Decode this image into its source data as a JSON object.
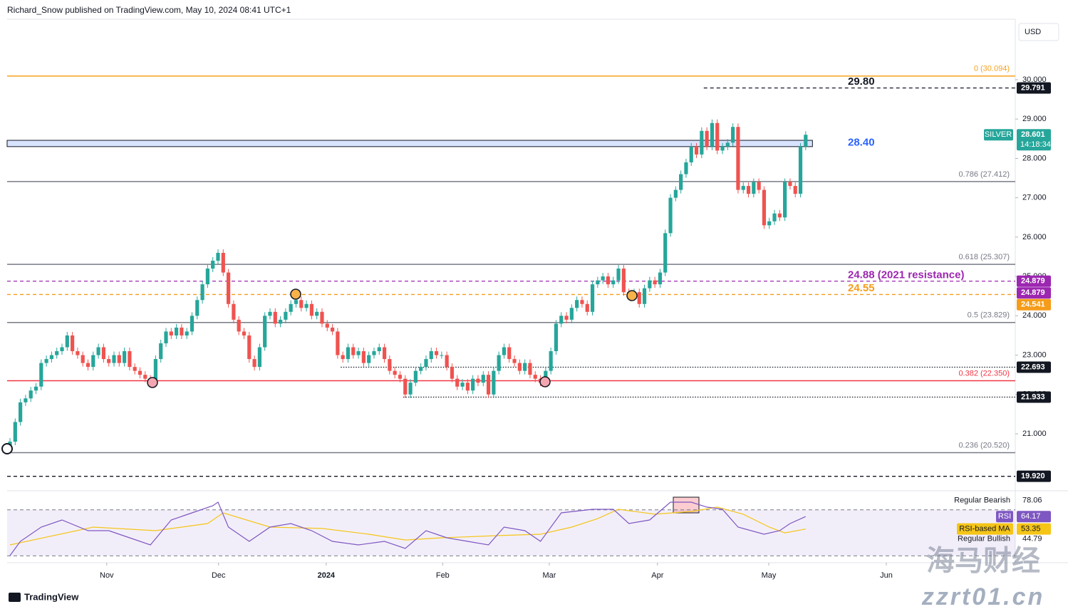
{
  "chart_data": {
    "type": "candlestick",
    "title": "Richard_Snow published on TradingView.com, May 10, 2024 08:41 UTC+1",
    "currency": "USD",
    "footer": "TradingView",
    "watermark": [
      "海马财经",
      "zzrt01.cn"
    ],
    "up_color": "#26a69a",
    "down_color": "#ef5350",
    "xlim": [
      -0.55,
      193.3
    ],
    "xticks": [
      {
        "value": 18.6,
        "label": "Nov"
      },
      {
        "value": 40.1,
        "label": "Dec"
      },
      {
        "value": 60.8,
        "label": "2024",
        "bold": true
      },
      {
        "value": 83.2,
        "label": "Feb"
      },
      {
        "value": 103.7,
        "label": "Mar"
      },
      {
        "value": 124.5,
        "label": "Apr"
      },
      {
        "value": 145.9,
        "label": "May"
      },
      {
        "value": 168.5,
        "label": "Jun"
      }
    ],
    "ylim": [
      19.57,
      31.52
    ],
    "yticks": [
      {
        "value": 21,
        "label": "21.000"
      },
      {
        "value": 22,
        "label": "22.000"
      },
      {
        "value": 23,
        "label": "23.000"
      },
      {
        "value": 24,
        "label": "24.000"
      },
      {
        "value": 25,
        "label": "25.000"
      },
      {
        "value": 26,
        "label": "26.000"
      },
      {
        "value": 27,
        "label": "27.000"
      },
      {
        "value": 28,
        "label": "28.000"
      },
      {
        "value": 29,
        "label": "29.000"
      },
      {
        "value": 30,
        "label": "30.000"
      }
    ],
    "open": [
      20.6,
      20.8,
      21.3,
      21.8,
      21.9,
      22.1,
      22.2,
      22.8,
      22.9,
      23.0,
      23.1,
      23.2,
      23.5,
      23.1,
      23.0,
      22.8,
      22.7,
      23.0,
      23.2,
      22.9,
      22.8,
      23.0,
      22.8,
      23.1,
      22.7,
      22.6,
      22.5,
      22.4,
      22.3,
      22.9,
      23.3,
      23.6,
      23.5,
      23.7,
      23.5,
      23.6,
      24.0,
      24.4,
      24.8,
      25.2,
      25.4,
      25.6,
      25.1,
      24.3,
      23.9,
      23.6,
      23.5,
      22.9,
      22.7,
      23.2,
      24.0,
      24.1,
      23.8,
      23.9,
      24.1,
      24.3,
      24.4,
      24.2,
      24.3,
      24.0,
      24.1,
      23.8,
      23.7,
      23.6,
      23.0,
      22.9,
      23.2,
      23.0,
      23.1,
      22.8,
      23.0,
      23.1,
      23.2,
      22.9,
      22.6,
      22.5,
      22.4,
      22.0,
      22.3,
      22.6,
      22.7,
      22.9,
      23.1,
      23.0,
      23.0,
      22.7,
      22.4,
      22.2,
      22.3,
      22.1,
      22.4,
      22.3,
      22.5,
      22.0,
      22.6,
      23.0,
      23.2,
      22.9,
      22.8,
      22.6,
      22.8,
      22.5,
      22.4,
      22.3,
      22.6,
      23.1,
      23.8,
      24.0,
      23.9,
      24.2,
      24.4,
      24.3,
      24.1,
      24.8,
      24.9,
      25.0,
      24.8,
      24.9,
      25.2,
      24.6,
      24.5,
      24.6,
      24.3,
      24.7,
      24.9,
      24.8,
      25.1,
      26.1,
      27.0,
      27.2,
      27.6,
      27.9,
      28.3,
      28.1,
      28.7,
      28.3,
      28.9,
      28.2,
      28.3,
      28.4,
      28.8,
      27.2,
      27.3,
      27.1,
      27.4,
      27.2,
      26.3,
      26.4,
      26.6,
      26.5,
      27.4,
      27.3,
      27.1,
      28.3
    ],
    "close": [
      20.8,
      21.3,
      21.8,
      21.9,
      22.1,
      22.2,
      22.8,
      22.9,
      23.0,
      23.1,
      23.2,
      23.5,
      23.1,
      23.0,
      22.8,
      22.7,
      23.0,
      23.2,
      22.9,
      22.8,
      23.0,
      22.8,
      23.1,
      22.7,
      22.6,
      22.5,
      22.4,
      22.3,
      22.9,
      23.3,
      23.6,
      23.5,
      23.7,
      23.5,
      23.6,
      24.0,
      24.4,
      24.8,
      25.2,
      25.4,
      25.6,
      25.1,
      24.3,
      23.9,
      23.6,
      23.5,
      22.9,
      22.7,
      23.2,
      24.0,
      24.1,
      23.8,
      23.9,
      24.1,
      24.3,
      24.4,
      24.2,
      24.3,
      24.0,
      24.1,
      23.8,
      23.7,
      23.6,
      23.0,
      22.9,
      23.2,
      23.0,
      23.1,
      22.8,
      23.0,
      23.1,
      23.2,
      22.9,
      22.6,
      22.5,
      22.4,
      22.0,
      22.3,
      22.6,
      22.7,
      22.9,
      23.1,
      23.0,
      23.0,
      22.7,
      22.4,
      22.2,
      22.3,
      22.1,
      22.4,
      22.3,
      22.5,
      22.0,
      22.6,
      23.0,
      23.2,
      22.9,
      22.8,
      22.6,
      22.8,
      22.5,
      22.4,
      22.3,
      22.6,
      23.1,
      23.8,
      24.0,
      23.9,
      24.2,
      24.4,
      24.3,
      24.1,
      24.8,
      24.9,
      25.0,
      24.8,
      24.9,
      25.2,
      24.6,
      24.5,
      24.6,
      24.3,
      24.7,
      24.9,
      24.8,
      25.1,
      26.1,
      27.0,
      27.2,
      27.6,
      27.9,
      28.3,
      28.1,
      28.7,
      28.3,
      28.9,
      28.2,
      28.3,
      28.4,
      28.8,
      27.2,
      27.3,
      27.1,
      27.4,
      27.2,
      26.3,
      26.4,
      26.6,
      26.5,
      27.4,
      27.3,
      27.1,
      28.3,
      28.601
    ],
    "last": {
      "symbol": "SILVER",
      "value": 28.601,
      "countdown": "14:18:34",
      "color": "#26a69a"
    },
    "zone": {
      "range": [
        28.3,
        28.46
      ],
      "x_end": 154.3,
      "color": "#2962ff"
    },
    "levels": [
      {
        "value": 30.094,
        "label": "0 (30.094)",
        "color": "#f7a21b",
        "dash": "solid"
      },
      {
        "value": 29.791,
        "color": "#131722",
        "dash": "dashed",
        "x_start": 133.4
      },
      {
        "value": 27.412,
        "label": "0.786 (27.412)",
        "color": "#787b86",
        "dash": "solid"
      },
      {
        "value": 25.307,
        "label": "0.618 (25.307)",
        "color": "#787b86",
        "dash": "solid"
      },
      {
        "value": 24.879,
        "color": "#9c27b0",
        "dash": "dashed"
      },
      {
        "value": 24.541,
        "color": "#f59c1a",
        "dash": "dashed"
      },
      {
        "value": 23.829,
        "label": "0.5 (23.829)",
        "color": "#787b86",
        "dash": "solid"
      },
      {
        "value": 22.693,
        "color": "#131722",
        "dash": "dotted",
        "x_start": 63.6
      },
      {
        "value": 22.35,
        "label": "0.382 (22.350)",
        "color": "#f23645",
        "dash": "solid"
      },
      {
        "value": 21.933,
        "color": "#131722",
        "dash": "dotted",
        "x_start": 75.6
      },
      {
        "value": 20.52,
        "label": "0.236 (20.520)",
        "color": "#787b86",
        "dash": "solid"
      },
      {
        "value": 19.92,
        "color": "#131722",
        "dash": "dashed"
      }
    ],
    "annotations": [
      {
        "value": 29.8,
        "label": "29.80",
        "color": "#131722"
      },
      {
        "value": 28.4,
        "label": "28.40",
        "color": "#2962ff"
      },
      {
        "value": 24.88,
        "label": "24.88 (2021 resistance)",
        "color": "#9c27b0"
      },
      {
        "value": 24.55,
        "color": "#f59c1a"
      }
    ],
    "price_tags": [
      {
        "value": 29.791,
        "color": "#131722"
      },
      {
        "value": 24.879,
        "color": "#9c27b0"
      },
      {
        "value": 24.879,
        "color": "#9c27b0"
      },
      {
        "value": 24.541,
        "color": "#f59c1a"
      },
      {
        "value": 22.693,
        "color": "#131722"
      },
      {
        "value": 21.933,
        "color": "#131722"
      },
      {
        "value": 19.92,
        "label": "19.920",
        "color": "#131722"
      }
    ],
    "rsi": {
      "label": "RSI",
      "color": "#7e57c2",
      "ylim": [
        24,
        86
      ],
      "levels": [
        70,
        30
      ],
      "x": [
        0,
        2,
        6,
        10,
        15,
        19,
        23,
        27,
        31,
        35,
        39,
        40,
        42,
        46,
        50,
        54,
        58,
        62,
        67,
        72,
        76,
        80,
        84,
        88,
        92,
        95,
        99,
        102,
        106,
        112,
        116,
        119,
        123,
        127,
        131,
        134,
        137,
        140,
        145,
        148,
        150,
        153
      ],
      "values": [
        30.2,
        42.6,
        55,
        61.2,
        51.9,
        51.9,
        45.7,
        39.5,
        61.2,
        67.4,
        73.6,
        76.7,
        55,
        42.6,
        55,
        58.1,
        51.9,
        42.6,
        39.5,
        42.6,
        36.4,
        51.9,
        45.7,
        42.6,
        39.5,
        55,
        51.9,
        42.6,
        67.4,
        70.5,
        70.5,
        58.1,
        61.2,
        76.7,
        76.7,
        72.4,
        70.5,
        55,
        48.8,
        51.9,
        58.1,
        64.17
      ],
      "ma_label": "RSI-based MA",
      "ma_color": "#f5c518",
      "ma_x": [
        0,
        16,
        28,
        38,
        41,
        50,
        60,
        69,
        76,
        83,
        94,
        102,
        108,
        113,
        117,
        124,
        131,
        136,
        141,
        146,
        149,
        153
      ],
      "ma": [
        39.5,
        55,
        51.9,
        58.1,
        67.4,
        55,
        53.8,
        48.8,
        43.8,
        45.7,
        47.6,
        48.8,
        55,
        62.4,
        70.5,
        66.2,
        68.6,
        72.4,
        66.2,
        55,
        50,
        53.35
      ],
      "bearish": {
        "label": "Regular Bearish",
        "value": 78.06
      },
      "bullish": {
        "label": "Regular Bullish",
        "value": 44.79
      }
    }
  }
}
